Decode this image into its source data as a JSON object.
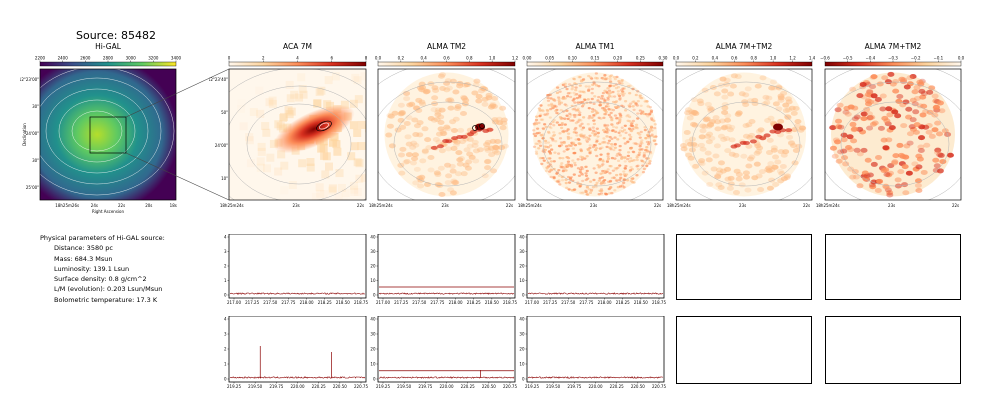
{
  "page_title": "Source: 85482",
  "colors": {
    "spectrum": "#8b0000",
    "axis": "#000000",
    "contour_gray": "#b4b4b4",
    "contour_white": "#ffffff",
    "zoom_line": "#444444"
  },
  "params": {
    "heading": "Physical parameters of Hi-GAL source:",
    "lines": [
      "Distance: 3580 pc",
      "Mass: 684.3 Msun",
      "Luminosity: 139.1 Lsun",
      "Surface density: 0.8 g/cm^2",
      "L/M (evolution): 0.203 Lsun/Msun",
      "Bolometric temperature: 17.3 K"
    ]
  },
  "chart_data": [
    {
      "type": "heatmap",
      "title": "Hi-GAL",
      "colormap": "viridis",
      "colorbar_ticks": [
        "2200",
        "2400",
        "2600",
        "2800",
        "3000",
        "3200",
        "3400"
      ],
      "xlabel": "Right Ascension",
      "ylabel": "Declination",
      "x_ticks": [
        "18h25m26s",
        "24s",
        "22s",
        "20s",
        "18s"
      ],
      "y_ticks": [
        "-12°23'00\"",
        "30\"",
        "24'00\"",
        "30\"",
        "25'00\""
      ]
    },
    {
      "type": "heatmap",
      "title": "ACA 7M",
      "colormap": "OrRd",
      "colorbar_ticks": [
        "0",
        "2",
        "4",
        "6",
        "8"
      ],
      "x_ticks": [
        "18h25m24s",
        "23s",
        "22s"
      ],
      "y_ticks": [
        "-12°23'40\"",
        "50\"",
        "24'00\"",
        "10\""
      ]
    },
    {
      "type": "heatmap",
      "title": "ALMA TM2",
      "colormap": "OrRd",
      "colorbar_ticks": [
        "0.0",
        "0.2",
        "0.4",
        "0.6",
        "0.8",
        "1.0",
        "1.2"
      ],
      "x_ticks": [
        "18h25m24s",
        "23s",
        "22s"
      ]
    },
    {
      "type": "heatmap",
      "title": "ALMA TM1",
      "colormap": "OrRd",
      "colorbar_ticks": [
        "0.00",
        "0.05",
        "0.10",
        "0.15",
        "0.20",
        "0.25",
        "0.30"
      ],
      "x_ticks": [
        "18h25m24s",
        "23s",
        "22s"
      ]
    },
    {
      "type": "heatmap",
      "title": "ALMA 7M+TM2",
      "colormap": "OrRd",
      "colorbar_ticks": [
        "0.0",
        "0.2",
        "0.4",
        "0.6",
        "0.8",
        "1.0",
        "1.2",
        "1.4"
      ],
      "x_ticks": [
        "18h25m24s",
        "23s",
        "22s"
      ]
    },
    {
      "type": "heatmap",
      "title": "ALMA 7M+TM2",
      "colormap": "OrRd",
      "colorbar_ticks": [
        "−0.6",
        "−0.5",
        "−0.4",
        "−0.3",
        "−0.2",
        "−0.1",
        "0.0"
      ],
      "x_ticks": [
        "18h25m24s",
        "23s",
        "22s"
      ]
    },
    {
      "type": "line",
      "ylim": [
        0,
        4
      ],
      "y_ticks": [
        "0",
        "1",
        "2",
        "3",
        "4"
      ],
      "x_ticks": [
        "217.00",
        "217.25",
        "217.50",
        "217.75",
        "218.00",
        "218.25",
        "218.50",
        "218.75"
      ],
      "baseline": 0.1,
      "lines": []
    },
    {
      "type": "line",
      "ylim": [
        0,
        40
      ],
      "y_ticks": [
        "0",
        "10",
        "20",
        "30",
        "40"
      ],
      "x_ticks": [
        "217.00",
        "217.25",
        "217.50",
        "217.75",
        "218.00",
        "218.25",
        "218.50",
        "218.75"
      ],
      "baseline": 1,
      "lines": [
        5.5
      ]
    },
    {
      "type": "line",
      "ylim": [
        0,
        40
      ],
      "y_ticks": [
        "0",
        "10",
        "20",
        "30",
        "40"
      ],
      "x_ticks": [
        "217.00",
        "217.25",
        "217.50",
        "217.75",
        "218.00",
        "218.25",
        "218.50",
        "218.75"
      ],
      "baseline": 1,
      "lines": []
    },
    {
      "type": "line",
      "ylim": [
        0,
        4
      ],
      "y_ticks": [
        "0",
        "1",
        "2",
        "3",
        "4"
      ],
      "x_ticks": [
        "219.25",
        "219.50",
        "219.75",
        "220.00",
        "220.25",
        "220.50",
        "220.75"
      ],
      "baseline": 0.1,
      "lines": [],
      "peaks": [
        {
          "x": 219.56,
          "y": 2.2
        },
        {
          "x": 220.4,
          "y": 1.8
        }
      ]
    },
    {
      "type": "line",
      "ylim": [
        0,
        40
      ],
      "y_ticks": [
        "0",
        "10",
        "20",
        "30",
        "40"
      ],
      "x_ticks": [
        "219.25",
        "219.50",
        "219.75",
        "220.00",
        "220.25",
        "220.50",
        "220.75"
      ],
      "baseline": 1,
      "lines": [
        5.5
      ],
      "peaks": [
        {
          "x": 220.4,
          "y": 6
        }
      ]
    },
    {
      "type": "line",
      "ylim": [
        0,
        40
      ],
      "y_ticks": [
        "0",
        "10",
        "20",
        "30",
        "40"
      ],
      "x_ticks": [
        "219.25",
        "219.50",
        "219.75",
        "220.00",
        "220.25",
        "220.50",
        "220.75"
      ],
      "baseline": 1,
      "lines": []
    }
  ]
}
